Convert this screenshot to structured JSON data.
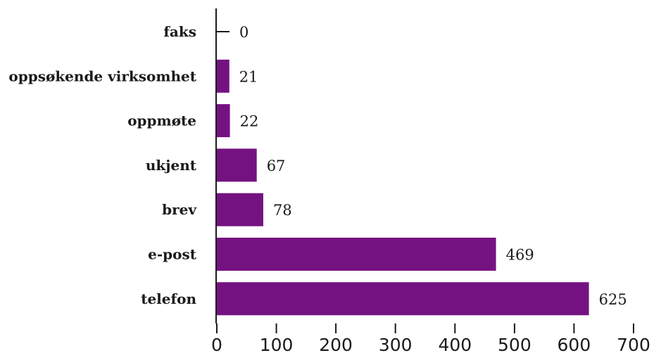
{
  "chart_data": {
    "type": "bar",
    "orientation": "horizontal",
    "title": "",
    "xlabel": "",
    "ylabel": "",
    "categories": [
      "faks",
      "oppsøkende virksomhet",
      "oppmøte",
      "ukjent",
      "brev",
      "e-post",
      "telefon"
    ],
    "values": [
      0,
      21,
      22,
      67,
      78,
      469,
      625
    ],
    "value_labels": [
      "0",
      "21",
      "22",
      "67",
      "78",
      "469",
      "625"
    ],
    "xlim": [
      0,
      700
    ],
    "xticks": [
      0,
      100,
      200,
      300,
      400,
      500,
      600,
      700
    ],
    "xtick_labels": [
      "0",
      "100",
      "200",
      "300",
      "400",
      "500",
      "600",
      "700"
    ],
    "grid": false,
    "legend": "none",
    "colors": {
      "bar": "#751282"
    }
  }
}
